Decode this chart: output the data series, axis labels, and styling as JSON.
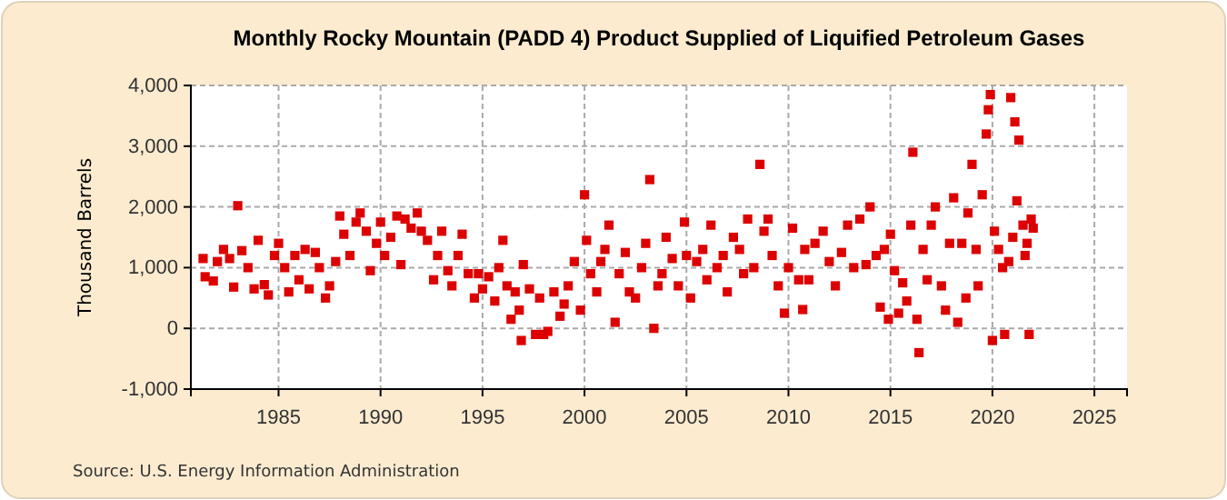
{
  "chart_data": {
    "type": "scatter",
    "title": "Monthly Rocky Mountain (PADD 4) Product Supplied of Liquified Petroleum Gases",
    "ylabel": "Thousand Barrels",
    "annotations": [
      "Source: U.S. Energy Information Administration"
    ],
    "marker": "square",
    "grid": true,
    "xlim": [
      1980.7,
      2026.6
    ],
    "xticks": [
      1985,
      1990,
      1995,
      2000,
      2005,
      2010,
      2015,
      2020,
      2025
    ],
    "ylim": [
      -1000,
      4000
    ],
    "yticks": [
      {
        "value": -1000,
        "label": "-1,000"
      },
      0,
      {
        "value": 1000,
        "label": "1,000"
      },
      {
        "value": 2000,
        "label": "2,000"
      },
      {
        "value": 3000,
        "label": "3,000"
      },
      {
        "value": 4000,
        "label": "4,000"
      }
    ],
    "series": [
      {
        "color": "#dd0000",
        "x": [
          1981.3,
          1981.4,
          1981.8,
          1982.0,
          1982.3,
          1982.6,
          1982.8,
          1983.0,
          1983.2,
          1983.5,
          1983.8,
          1984.0,
          1984.3,
          1984.5,
          1984.8,
          1985.0,
          1985.3,
          1985.5,
          1985.8,
          1986.0,
          1986.3,
          1986.5,
          1986.8,
          1987.0,
          1987.3,
          1987.5,
          1987.8,
          1988.0,
          1988.2,
          1988.5,
          1988.8,
          1989.0,
          1989.3,
          1989.5,
          1989.8,
          1990.0,
          1990.2,
          1990.5,
          1990.8,
          1991.0,
          1991.2,
          1991.5,
          1991.8,
          1992.0,
          1992.3,
          1992.6,
          1992.8,
          1993.0,
          1993.3,
          1993.5,
          1993.8,
          1994.0,
          1994.3,
          1994.6,
          1994.8,
          1995.0,
          1995.3,
          1995.6,
          1995.8,
          1996.0,
          1996.2,
          1996.4,
          1996.6,
          1996.8,
          1996.9,
          1997.0,
          1997.3,
          1997.6,
          1997.8,
          1998.0,
          1998.2,
          1998.5,
          1998.8,
          1999.0,
          1999.2,
          1999.5,
          1999.8,
          2000.0,
          2000.1,
          2000.3,
          2000.6,
          2000.8,
          2001.0,
          2001.2,
          2001.5,
          2001.7,
          2002.0,
          2002.2,
          2002.5,
          2002.8,
          2003.0,
          2003.2,
          2003.4,
          2003.6,
          2003.8,
          2004.0,
          2004.3,
          2004.6,
          2004.9,
          2005.0,
          2005.2,
          2005.5,
          2005.8,
          2006.0,
          2006.2,
          2006.5,
          2006.8,
          2007.0,
          2007.3,
          2007.6,
          2007.8,
          2008.0,
          2008.3,
          2008.6,
          2008.8,
          2009.0,
          2009.2,
          2009.5,
          2009.8,
          2010.0,
          2010.2,
          2010.5,
          2010.7,
          2010.8,
          2011.0,
          2011.3,
          2011.7,
          2012.0,
          2012.3,
          2012.6,
          2012.9,
          2013.2,
          2013.5,
          2013.8,
          2014.0,
          2014.3,
          2014.5,
          2014.7,
          2014.9,
          2015.0,
          2015.2,
          2015.4,
          2015.6,
          2015.8,
          2016.0,
          2016.1,
          2016.3,
          2016.4,
          2016.6,
          2016.8,
          2017.0,
          2017.2,
          2017.5,
          2017.7,
          2017.9,
          2018.1,
          2018.3,
          2018.5,
          2018.7,
          2018.8,
          2019.0,
          2019.2,
          2019.3,
          2019.5,
          2019.7,
          2019.8,
          2019.9,
          2020.0,
          2020.1,
          2020.3,
          2020.5,
          2020.6,
          2020.8,
          2020.9,
          2021.0,
          2021.1,
          2021.2,
          2021.3,
          2021.5,
          2021.6,
          2021.7,
          2021.8,
          2021.9,
          2022.0
        ],
        "values": [
          1150,
          850,
          780,
          1100,
          1300,
          1150,
          680,
          2020,
          1280,
          1000,
          650,
          1450,
          720,
          550,
          1200,
          1400,
          1000,
          600,
          1200,
          800,
          1300,
          650,
          1250,
          1000,
          500,
          700,
          1100,
          1850,
          1550,
          1200,
          1750,
          1900,
          1600,
          950,
          1400,
          1750,
          1200,
          1500,
          1850,
          1050,
          1800,
          1650,
          1900,
          1600,
          1450,
          800,
          1200,
          1600,
          950,
          700,
          1200,
          1550,
          900,
          500,
          900,
          650,
          850,
          450,
          1000,
          1450,
          700,
          150,
          600,
          300,
          -200,
          1050,
          650,
          -100,
          500,
          -100,
          -50,
          600,
          200,
          400,
          700,
          1100,
          300,
          2200,
          1450,
          900,
          600,
          1100,
          1300,
          1700,
          100,
          900,
          1250,
          600,
          500,
          1000,
          1400,
          2450,
          0,
          700,
          900,
          1500,
          1150,
          700,
          1750,
          1200,
          500,
          1100,
          1300,
          800,
          1700,
          1000,
          1200,
          600,
          1500,
          1300,
          900,
          1800,
          1000,
          2700,
          1600,
          1800,
          1200,
          700,
          250,
          1000,
          1650,
          800,
          310,
          1300,
          800,
          1400,
          1600,
          1100,
          700,
          1250,
          1700,
          1000,
          1800,
          1050,
          2000,
          1200,
          350,
          1300,
          150,
          1550,
          950,
          250,
          750,
          450,
          1700,
          2900,
          150,
          -400,
          1300,
          800,
          1700,
          2000,
          700,
          300,
          1400,
          2150,
          100,
          1400,
          500,
          1900,
          2700,
          1300,
          700,
          2200,
          3200,
          3600,
          3850,
          -200,
          1600,
          1300,
          1000,
          -100,
          1100,
          3800,
          1500,
          3400,
          2100,
          3100,
          1700,
          1200,
          1400,
          -100,
          1800,
          1650
        ]
      }
    ]
  }
}
